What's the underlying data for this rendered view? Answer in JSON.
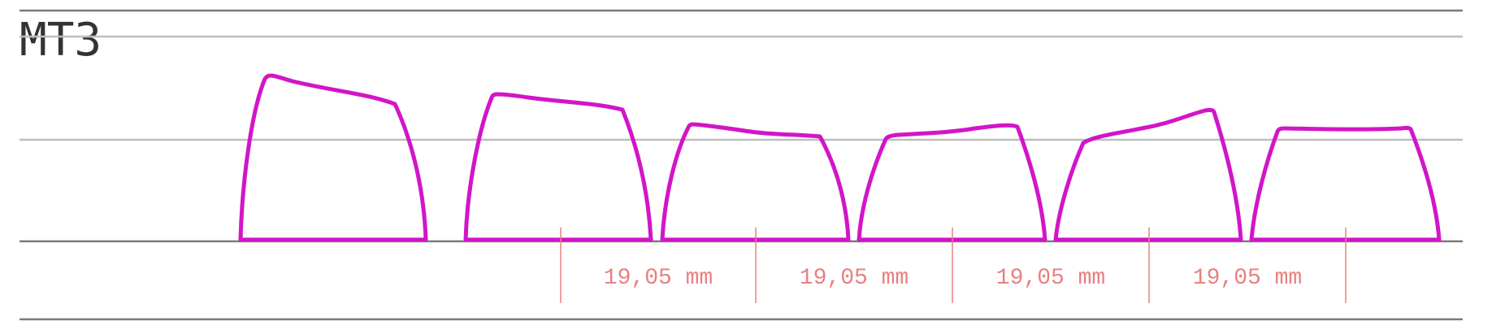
{
  "title": "MT3",
  "colors": {
    "profile": "#d215c8",
    "guide_dark": "#7a7a7a",
    "guide_light": "#bdbdbd",
    "dimension": "#e98080",
    "title": "#333333"
  },
  "keycap_count": 6,
  "spacing": {
    "count": 4,
    "label": "19,05 mm"
  }
}
